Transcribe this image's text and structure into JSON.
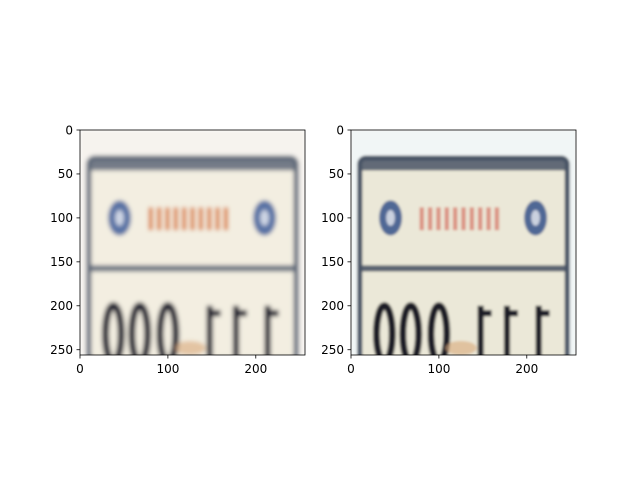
{
  "chart_data": [
    {
      "type": "image",
      "title": "",
      "image_size": [
        256,
        256
      ],
      "xlim": [
        0,
        256
      ],
      "ylim": [
        256,
        0
      ],
      "x_ticks": [
        0,
        100,
        200
      ],
      "y_ticks": [
        0,
        50,
        100,
        150,
        200,
        250
      ],
      "grid": false,
      "content": "blurry license-plate crop",
      "palette": {
        "border": "#5d6778",
        "plate": "#f3eee1",
        "emblem": "#3e5d9a",
        "text_band": "#d97a3b",
        "digits": "#1c1d2f"
      }
    },
    {
      "type": "image",
      "title": "",
      "image_size": [
        256,
        256
      ],
      "xlim": [
        0,
        256
      ],
      "ylim": [
        256,
        0
      ],
      "x_ticks": [
        0,
        100,
        200
      ],
      "y_ticks": [
        0,
        50,
        100,
        150,
        200,
        250
      ],
      "grid": false,
      "content": "blurry license-plate crop (reconstruction)",
      "palette": {
        "border": "#4a5566",
        "plate": "#ebe8d8",
        "emblem": "#34508a",
        "text_band": "#d98a7a",
        "digits": "#1a1a26"
      }
    }
  ]
}
